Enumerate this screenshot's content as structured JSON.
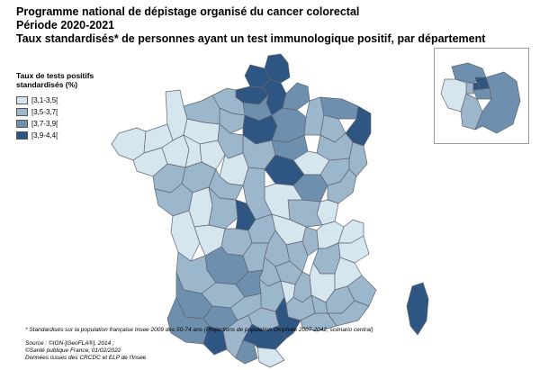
{
  "title": {
    "line1": "Programme national de dépistage organisé du cancer colorectal",
    "line2": "Période 2020-2021",
    "line3": "Taux standardisés* de personnes ayant un test immunologique positif, par département"
  },
  "legend": {
    "title": "Taux de tests positifs standardisés (%)",
    "items": [
      {
        "label": "[3,1-3,5[",
        "color": "#d6e6ef"
      },
      {
        "label": "[3,5-3,7[",
        "color": "#9cb6cc"
      },
      {
        "label": "[3,7-3,9[",
        "color": "#6e8fae"
      },
      {
        "label": "[3,9-4,4[",
        "color": "#2f5583"
      }
    ]
  },
  "map": {
    "border_color": "#5f6670",
    "class_by_region": {
      "nord": 3,
      "pas-de-calais": 3,
      "somme": 3,
      "aisne": 3,
      "ardennes": 2,
      "oise": 2,
      "seine-maritime": 1,
      "eure": 1,
      "calvados": 1,
      "manche": 0,
      "orne": 0,
      "paris-region": 3,
      "marne": 2,
      "aube": 2,
      "meuse": 1,
      "moselle": 2,
      "bas-rhin": 3,
      "haut-rhin": 1,
      "meurthe-et-moselle": 1,
      "vosges": 1,
      "haute-marne": 0,
      "bretagne-finistere": 0,
      "cotes-d-armor": 0,
      "morbihan": 0,
      "ille-et-vilaine": 0,
      "mayenne": 0,
      "sarthe": 0,
      "eure-et-loir": 1,
      "loiret": 1,
      "yonne": 3,
      "cote-d-or": 2,
      "haute-saone": 1,
      "doubs": 1,
      "jura": 0,
      "saone-et-loire": 1,
      "nievre": 0,
      "cher": 1,
      "loir-et-cher": 0,
      "indre-et-loire": 1,
      "maine-et-loire": 1,
      "loire-atlantique": 1,
      "vendee": 1,
      "deux-sevres": 0,
      "vienne": 1,
      "indre": 3,
      "creuse": 1,
      "allier": 0,
      "puy-de-dome": 1,
      "loire": 1,
      "rhone": 1,
      "ain": 0,
      "haute-savoie": 0,
      "savoie": 0,
      "isere": 1,
      "charente-maritime": 0,
      "charente": 0,
      "haute-vienne": 1,
      "correze": 1,
      "cantal": 1,
      "haute-loire": 1,
      "drome": 0,
      "hautes-alpes": 0,
      "ardeche": 1,
      "dordogne": 2,
      "gironde": 1,
      "lot": 2,
      "lot-et-garonne": 1,
      "aveyron": 1,
      "lozere": 0,
      "gard": 1,
      "vaucluse": 1,
      "alpes-de-haute-provence": 1,
      "alpes-maritimes": 1,
      "var": 1,
      "bouches-du-rhone": 1,
      "landes": 2,
      "gers": 2,
      "tarn-et-garonne": 1,
      "tarn": 1,
      "pyrenees-atlantiques": 2,
      "hautes-pyrenees": 3,
      "haute-garonne": 1,
      "ariege": 2,
      "aude": 3,
      "herault": 3,
      "pyrenees-orientales": 0,
      "corse": 3
    },
    "inset_class_by_region": {
      "val-d-oise": 2,
      "seine-saint-denis": 3,
      "hauts-de-seine": 1,
      "paris": 3,
      "val-de-marne": 2,
      "yvelines": 0,
      "essonne": 1,
      "seine-et-marne": 2
    }
  },
  "footnote": "* Standardisés sur la population française Insee 2009 des 50-74 ans (Projections de population Omphale 2007-2042, scénario central)",
  "sources": [
    "Source : ©IGN-[GeoFLA®], 2014 ;",
    "©Santé publique France, 01/02/2022",
    "Données issues des CRCDC et ELP de l'Insee"
  ]
}
